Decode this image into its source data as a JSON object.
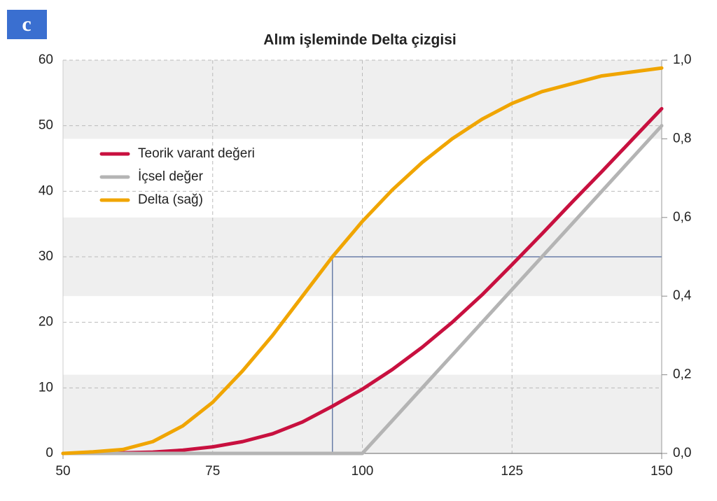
{
  "logo": "c",
  "chart_data": {
    "type": "line",
    "title": "Alım işleminde Delta çizgisi",
    "x": [
      50,
      55,
      60,
      65,
      70,
      75,
      80,
      85,
      90,
      95,
      100,
      105,
      110,
      115,
      120,
      125,
      130,
      135,
      140,
      145,
      150
    ],
    "series": [
      {
        "name": "Teorik varant değeri",
        "color": "#c8103f",
        "values": [
          0,
          0,
          0.1,
          0.2,
          0.5,
          1.0,
          1.8,
          3.0,
          4.8,
          7.2,
          9.8,
          12.8,
          16.2,
          20.0,
          24.2,
          28.8,
          33.5,
          38.3,
          43.0,
          47.8,
          52.6
        ]
      },
      {
        "name": "İçsel değer",
        "color": "#b4b4b4",
        "values": [
          0,
          0,
          0,
          0,
          0,
          0,
          0,
          0,
          0,
          0,
          0,
          5,
          10,
          15,
          20,
          25,
          30,
          35,
          40,
          45,
          50
        ]
      },
      {
        "name": "Delta (sağ)",
        "color": "#f0a500",
        "axis": "y2",
        "values": [
          0,
          0.004,
          0.01,
          0.03,
          0.07,
          0.13,
          0.21,
          0.3,
          0.4,
          0.5,
          0.59,
          0.67,
          0.74,
          0.8,
          0.85,
          0.89,
          0.92,
          0.94,
          0.96,
          0.97,
          0.98
        ]
      }
    ],
    "xlim": [
      50,
      150
    ],
    "xticks": [
      50,
      75,
      100,
      125,
      150
    ],
    "ylim": [
      0,
      60
    ],
    "yticks": [
      0,
      10,
      20,
      30,
      40,
      50,
      60
    ],
    "y2lim": [
      0,
      1
    ],
    "y2ticks": [
      {
        "value": 0,
        "label": "0,0"
      },
      {
        "value": 0.2,
        "label": "0,2"
      },
      {
        "value": 0.4,
        "label": "0,4"
      },
      {
        "value": 0.6,
        "label": "0,6"
      },
      {
        "value": 0.8,
        "label": "0,8"
      },
      {
        "value": 1,
        "label": "1,0"
      }
    ],
    "reference": {
      "x": 95,
      "y2": 0.5,
      "color": "#6a7fa8"
    },
    "grid": true,
    "bands": true,
    "legend": "upper left"
  }
}
